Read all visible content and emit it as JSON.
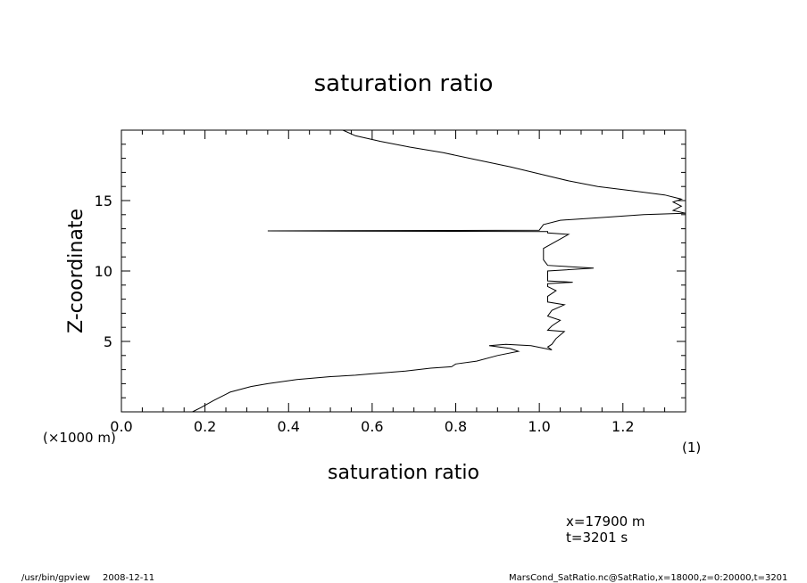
{
  "footer": {
    "program": "/usr/bin/gpview",
    "date": "2008-12-11",
    "source": "MarsCond_SatRatio.nc@SatRatio,x=18000,z=0:20000,t=3201"
  },
  "annotations": {
    "x_position": "x=17900  m",
    "time": "t=3201  s"
  },
  "chart_data": {
    "type": "line",
    "title": "saturation ratio",
    "xlabel": "saturation ratio",
    "ylabel": "Z-coordinate",
    "x_unit_label": "(1)",
    "y_unit_label": "(×1000 m)",
    "xlim": [
      0.0,
      1.35
    ],
    "ylim": [
      0,
      20
    ],
    "xticks": [
      0.0,
      0.2,
      0.4,
      0.6,
      0.8,
      1.0,
      1.2
    ],
    "xtick_labels": [
      "0.0",
      "0.2",
      "0.4",
      "0.6",
      "0.8",
      "1.0",
      "1.2"
    ],
    "yticks": [
      5,
      10,
      15
    ],
    "ytick_labels": [
      "5",
      "10",
      "15"
    ],
    "grid": false,
    "series": [
      {
        "x": [
          0.17,
          0.19,
          0.22,
          0.26,
          0.31,
          0.35,
          0.42,
          0.5,
          0.56,
          0.6,
          0.68,
          0.74,
          0.79,
          0.8,
          0.85,
          0.9,
          0.95,
          0.93,
          0.88,
          0.92,
          0.98,
          1.03,
          1.02,
          1.03,
          1.04,
          1.06,
          1.02,
          1.03,
          1.05,
          1.02,
          1.03,
          1.06,
          1.02,
          1.02,
          1.04,
          1.02,
          1.02,
          1.08,
          1.02,
          1.02,
          1.02,
          1.13,
          1.02,
          1.01,
          1.01,
          1.07,
          1.02,
          1.02,
          0.35,
          1.0,
          1.01,
          1.05,
          1.15,
          1.25,
          1.35,
          1.32,
          1.34,
          1.32,
          1.34,
          1.3,
          1.22,
          1.14,
          1.07,
          1.0,
          0.93,
          0.85,
          0.77,
          0.69,
          0.62,
          0.56,
          0.53
        ],
        "y": [
          0.0,
          0.3,
          0.8,
          1.4,
          1.8,
          2.0,
          2.3,
          2.5,
          2.6,
          2.7,
          2.9,
          3.1,
          3.2,
          3.4,
          3.6,
          4.0,
          4.3,
          4.5,
          4.7,
          4.8,
          4.7,
          4.4,
          4.6,
          4.8,
          5.2,
          5.7,
          5.8,
          6.1,
          6.5,
          6.8,
          7.2,
          7.6,
          7.8,
          8.2,
          8.6,
          8.9,
          9.1,
          9.2,
          9.3,
          9.8,
          10.0,
          10.2,
          10.4,
          10.8,
          11.6,
          12.6,
          12.7,
          12.8,
          12.85,
          12.9,
          13.3,
          13.6,
          13.8,
          14.0,
          14.1,
          14.3,
          14.6,
          14.9,
          15.1,
          15.4,
          15.7,
          16.0,
          16.4,
          16.9,
          17.4,
          17.9,
          18.4,
          18.8,
          19.2,
          19.6,
          20.0
        ]
      }
    ]
  }
}
